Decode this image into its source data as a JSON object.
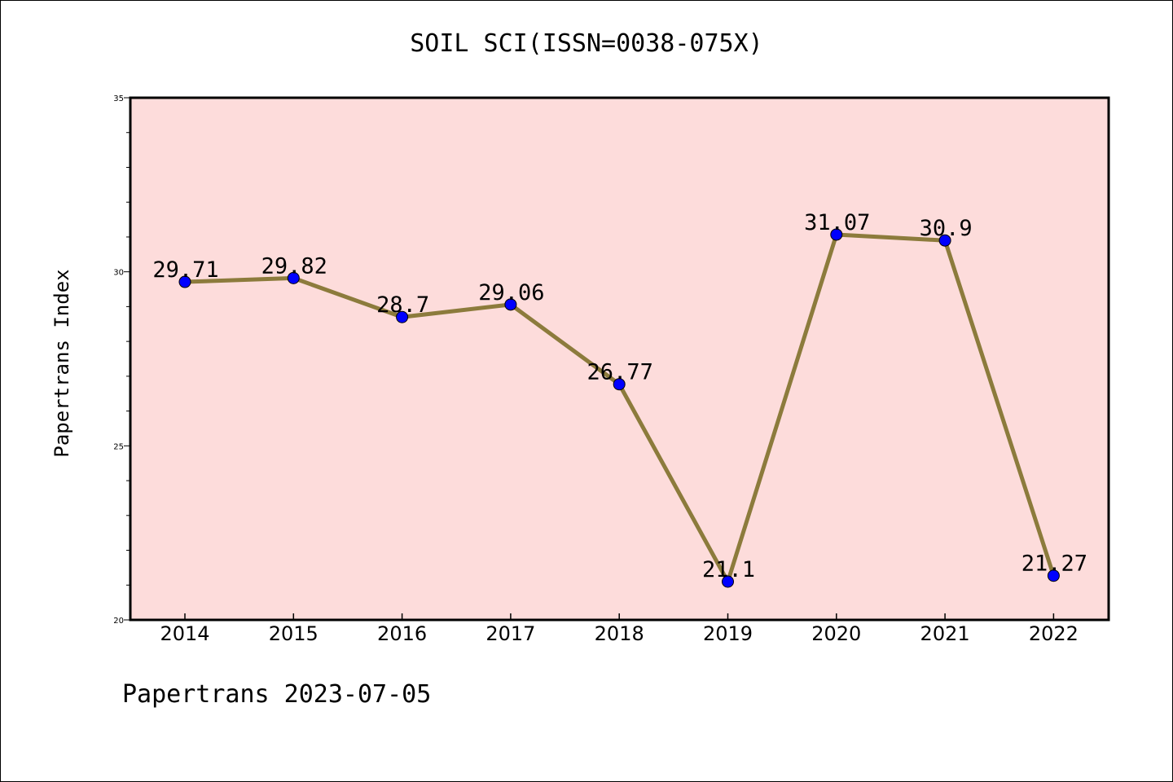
{
  "title": "SOIL SCI(ISSN=0038-075X)",
  "footer": "Papertrans 2023-07-05",
  "colors": {
    "plot_bg": "#fddcdb",
    "line": "#8c7b3c",
    "marker": "#0000ff",
    "frame": "#000000"
  },
  "chart_data": {
    "type": "line",
    "title": "SOIL SCI(ISSN=0038-075X)",
    "xlabel": "",
    "ylabel": "Papertrans Index",
    "x": [
      "2014",
      "2015",
      "2016",
      "2017",
      "2018",
      "2019",
      "2020",
      "2021",
      "2022"
    ],
    "series": [
      {
        "values": [
          29.71,
          29.82,
          28.7,
          29.06,
          26.77,
          21.1,
          31.07,
          30.9,
          21.27
        ],
        "labels": [
          "29.71",
          "29.82",
          "28.7",
          "29.06",
          "26.77",
          "21.1",
          "31.07",
          "30.9",
          "21.27"
        ]
      }
    ],
    "ylim": [
      20,
      35
    ],
    "yticks": [
      20,
      25,
      30,
      35
    ],
    "grid": false,
    "legend": "none"
  }
}
